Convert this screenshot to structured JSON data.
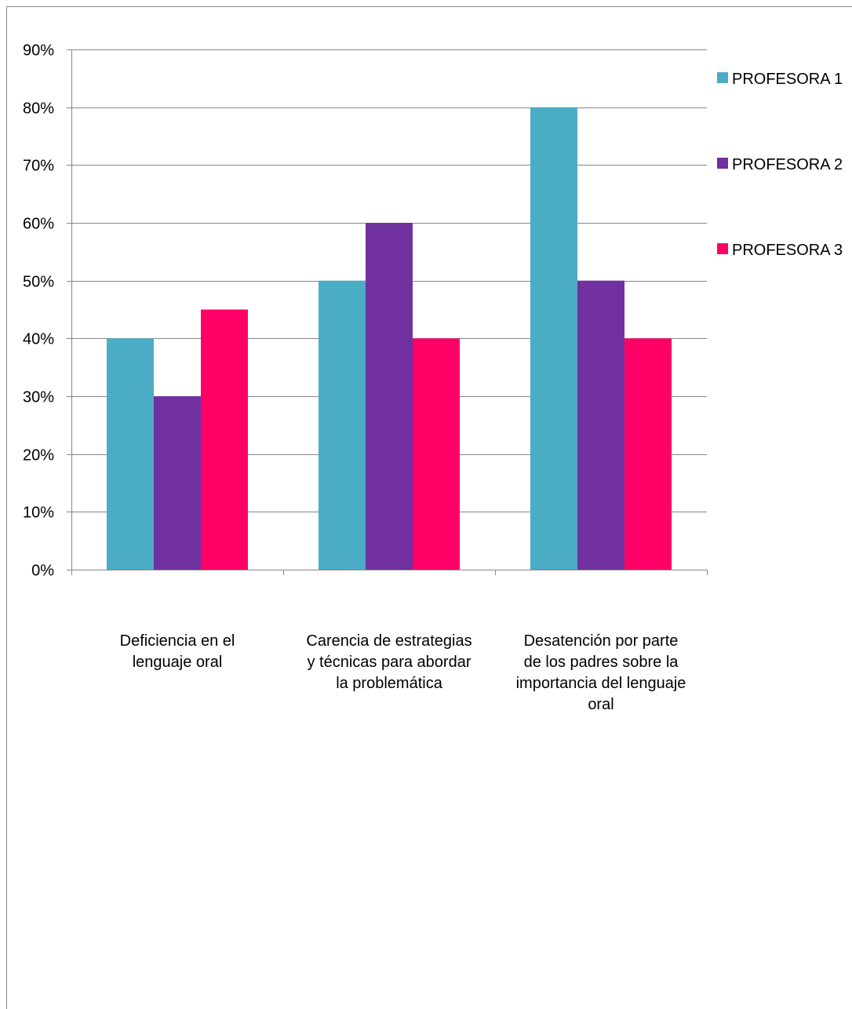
{
  "chart_data": {
    "type": "bar",
    "title": "",
    "xlabel": "",
    "ylabel": "",
    "categories": [
      [
        "Deficiencia en el",
        "lenguaje oral"
      ],
      [
        "Carencia de estrategias",
        "y técnicas para abordar",
        "la problemática"
      ],
      [
        "Desatención por parte",
        "de los padres sobre la",
        "importancia del lenguaje",
        "oral"
      ]
    ],
    "series": [
      {
        "name": "PROFESORA 1",
        "color": "#4BACC6",
        "values": [
          0.4,
          0.5,
          0.8
        ]
      },
      {
        "name": "PROFESORA 2",
        "color": "#7030A0",
        "values": [
          0.3,
          0.6,
          0.5
        ]
      },
      {
        "name": "PROFESORA 3",
        "color": "#FF0066",
        "values": [
          0.45,
          0.4,
          0.4
        ]
      }
    ],
    "ylim": [
      0,
      0.9
    ],
    "yticks": [
      "0%",
      "10%",
      "20%",
      "30%",
      "40%",
      "50%",
      "60%",
      "70%",
      "80%",
      "90%"
    ],
    "grid": true,
    "legend_position": "right"
  }
}
